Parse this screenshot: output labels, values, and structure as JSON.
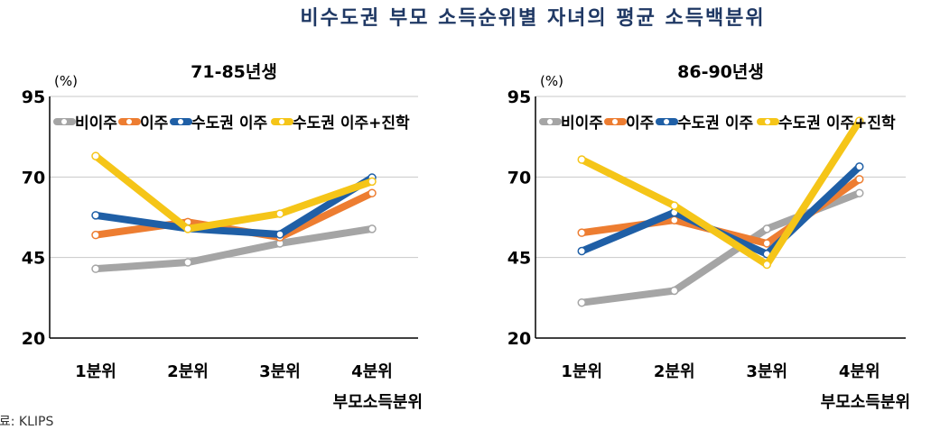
{
  "title": "비수도권 부모 소득순위별 자녀의 평균 소득백분위",
  "source": "자료: KLIPS",
  "chart_data": [
    {
      "type": "line",
      "title": "71-85년생",
      "ylabel": "(%)",
      "xlabel": "부모소득분위",
      "categories": [
        "1분위",
        "2분위",
        "3분위",
        "4분위"
      ],
      "ylim": [
        20,
        95
      ],
      "yticks": [
        20,
        45,
        70,
        95
      ],
      "grid": true,
      "legend": "top",
      "series": [
        {
          "name": "비이주",
          "color": "#a5a5a5",
          "values": [
            41.5,
            43.5,
            49.4,
            53.9
          ]
        },
        {
          "name": "이주",
          "color": "#ed7d31",
          "values": [
            52,
            56,
            51.3,
            65
          ]
        },
        {
          "name": "수도권 이주",
          "color": "#1f5fa6",
          "values": [
            58.1,
            54,
            52.2,
            69.8
          ]
        },
        {
          "name": "수도권 이주+진학",
          "color": "#f5c518",
          "values": [
            76.5,
            53.9,
            58.6,
            68.6
          ]
        }
      ]
    },
    {
      "type": "line",
      "title": "86-90년생",
      "ylabel": "(%)",
      "xlabel": "부모소득분위",
      "categories": [
        "1분위",
        "2분위",
        "3분위",
        "4분위"
      ],
      "ylim": [
        20,
        95
      ],
      "yticks": [
        20,
        45,
        70,
        95
      ],
      "grid": true,
      "legend": "top",
      "series": [
        {
          "name": "비이주",
          "color": "#a5a5a5",
          "values": [
            31,
            34.7,
            53.9,
            65
          ]
        },
        {
          "name": "이주",
          "color": "#ed7d31",
          "values": [
            52.7,
            56.6,
            49.4,
            69.3
          ]
        },
        {
          "name": "수도권 이주",
          "color": "#1f5fa6",
          "values": [
            47,
            59,
            46.1,
            73.2
          ]
        },
        {
          "name": "수도권 이주+진학",
          "color": "#f5c518",
          "values": [
            75.4,
            61.1,
            42.8,
            87.4
          ]
        }
      ]
    }
  ]
}
